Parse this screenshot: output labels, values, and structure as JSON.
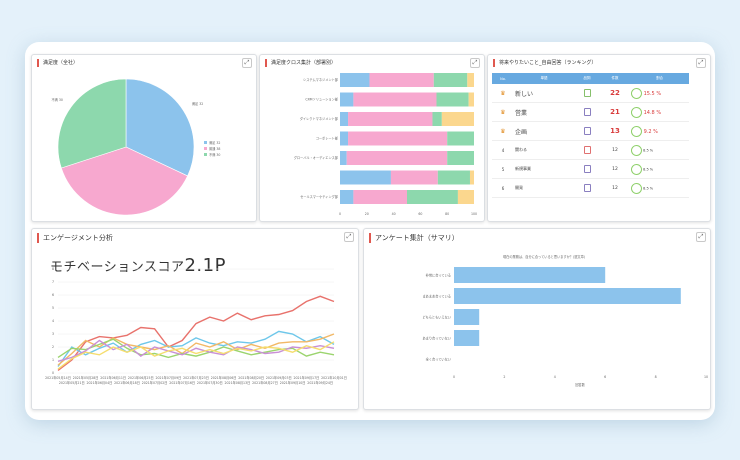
{
  "ui": {
    "expand_icon": "⤢"
  },
  "panels": {
    "satisfaction_pie": {
      "title": "満足度（全社）"
    },
    "cross_tab": {
      "title": "満足度クロス集計（部署別）"
    },
    "ranking": {
      "title": "将来やりたいこと_自由回答（ランキング）"
    },
    "engagement": {
      "title": "エンゲージメント分析"
    },
    "survey": {
      "title": "アンケート集計（サマリ）"
    }
  },
  "motivation": {
    "label": "モチベーションスコア",
    "value": "2.1P"
  },
  "ranking_table": {
    "headers": [
      "No.",
      "単語",
      "品詞",
      "件数",
      "割合"
    ],
    "rows": [
      {
        "rank": "1",
        "word": "新しい",
        "count": "22",
        "pct": "15.5 %"
      },
      {
        "rank": "2",
        "word": "営業",
        "count": "21",
        "pct": "14.8 %"
      },
      {
        "rank": "3",
        "word": "企画",
        "count": "13",
        "pct": "9.2 %"
      },
      {
        "rank": "4",
        "word": "関わる",
        "count": "12",
        "pct": "8.5 %"
      },
      {
        "rank": "5",
        "word": "新規事業",
        "count": "12",
        "pct": "8.5 %"
      },
      {
        "rank": "6",
        "word": "開発",
        "count": "12",
        "pct": "8.5 %"
      }
    ]
  },
  "chart_data": [
    {
      "type": "pie",
      "title": "満足度（全社）",
      "categories": [
        "満足",
        "普通",
        "不満"
      ],
      "values": [
        32,
        38,
        30
      ],
      "colors": [
        "#8cc3ec",
        "#f7a8cf",
        "#8dd8ad"
      ]
    },
    {
      "type": "bar",
      "stacked": true,
      "orientation": "horizontal",
      "title": "満足度クロス集計（部署別）",
      "categories": [
        "システムマネジメント部",
        "CRMソリューション部",
        "ダイレクトマネジメント部",
        "コーポレート部",
        "グローバル・オーディエンス部",
        "",
        "セールスマーケティング部"
      ],
      "series": [
        {
          "color": "#8cc3ec",
          "values": [
            22,
            10,
            6,
            6,
            5,
            38,
            10
          ]
        },
        {
          "color": "#f7a8cf",
          "values": [
            48,
            62,
            63,
            74,
            75,
            35,
            40
          ]
        },
        {
          "color": "#8dd8ad",
          "values": [
            25,
            24,
            7,
            20,
            20,
            24,
            38
          ]
        },
        {
          "color": "#fbd78e",
          "values": [
            5,
            4,
            24,
            0,
            0,
            3,
            12
          ]
        }
      ],
      "xlim": [
        0,
        100
      ],
      "xticks": [
        "0",
        "20",
        "40",
        "60",
        "80",
        "100"
      ]
    },
    {
      "type": "line",
      "title": "エンゲージメント分析",
      "x": [
        "2021年05月14日",
        "2021年05月21日",
        "2021年05月28日",
        "2021年06月04日",
        "2021年06月11日",
        "2021年06月18日",
        "2021年06月25日",
        "2021年07月02日",
        "2021年07月09日",
        "2021年07月16日",
        "2021年07月23日",
        "2021年07月30日",
        "2021年08月06日",
        "2021年08月13日",
        "2021年08月20日",
        "2021年08月27日",
        "2021年09月03日",
        "2021年09月10日",
        "2021年09月17日",
        "2021年09月24日",
        "2021年10月01日"
      ],
      "ylim": [
        0,
        8
      ],
      "yticks": [
        "0",
        "1",
        "2",
        "3",
        "4",
        "5",
        "6",
        "7",
        "8"
      ],
      "series": [
        {
          "color": "#e8726c",
          "values": [
            0.2,
            1.0,
            2.4,
            2.8,
            2.7,
            2.9,
            3.5,
            3.4,
            2.0,
            2.5,
            3.8,
            4.3,
            4.0,
            4.6,
            4.1,
            4.4,
            4.5,
            4.8,
            5.5,
            5.9,
            5.5
          ]
        },
        {
          "color": "#6ec7ea",
          "values": [
            0.5,
            2.0,
            1.4,
            1.9,
            2.3,
            1.6,
            2.2,
            2.5,
            2.0,
            2.1,
            2.7,
            2.3,
            2.1,
            2.4,
            2.3,
            2.6,
            3.2,
            3.0,
            2.4,
            2.8,
            2.2
          ]
        },
        {
          "color": "#f2b866",
          "values": [
            0.6,
            1.5,
            2.5,
            2.0,
            2.7,
            2.2,
            2.0,
            1.8,
            2.1,
            1.5,
            2.3,
            2.0,
            2.4,
            1.8,
            2.2,
            1.9,
            2.3,
            2.4,
            2.4,
            2.6,
            3.0
          ]
        },
        {
          "color": "#9bd46e",
          "values": [
            1.2,
            1.9,
            1.8,
            2.2,
            2.6,
            1.9,
            1.4,
            1.5,
            1.2,
            1.5,
            1.3,
            1.6,
            2.0,
            1.7,
            1.4,
            1.6,
            1.8,
            1.9,
            1.3,
            1.6,
            1.4
          ]
        },
        {
          "color": "#c98fd6",
          "values": [
            0.9,
            1.2,
            1.7,
            2.5,
            1.8,
            2.2,
            1.3,
            2.0,
            1.7,
            1.4,
            1.9,
            1.6,
            1.4,
            2.0,
            1.8,
            1.5,
            1.6,
            2.0,
            1.9,
            2.1,
            1.9
          ]
        },
        {
          "color": "#f5dd6e",
          "values": [
            0.3,
            1.1,
            1.6,
            1.4,
            2.0,
            1.6,
            2.0,
            1.3,
            1.7,
            1.9,
            1.5,
            1.8,
            1.5,
            1.9,
            1.7,
            2.0,
            1.9,
            1.6,
            2.1,
            1.8,
            2.4
          ]
        }
      ]
    },
    {
      "type": "bar",
      "orientation": "horizontal",
      "title": "現在の業務は、自分に合っていると思いますか？(選文章)",
      "categories": [
        "非常に合っている",
        "まあまあ合っている",
        "どちらともいえない",
        "あまり合っていない",
        "全く合っていない"
      ],
      "values": [
        6,
        9,
        1,
        1,
        0
      ],
      "color": "#8cc3ec",
      "xlabel": "回答数",
      "xlim": [
        0,
        10
      ],
      "xticks": [
        "0",
        "2",
        "4",
        "6",
        "8",
        "10"
      ]
    }
  ]
}
